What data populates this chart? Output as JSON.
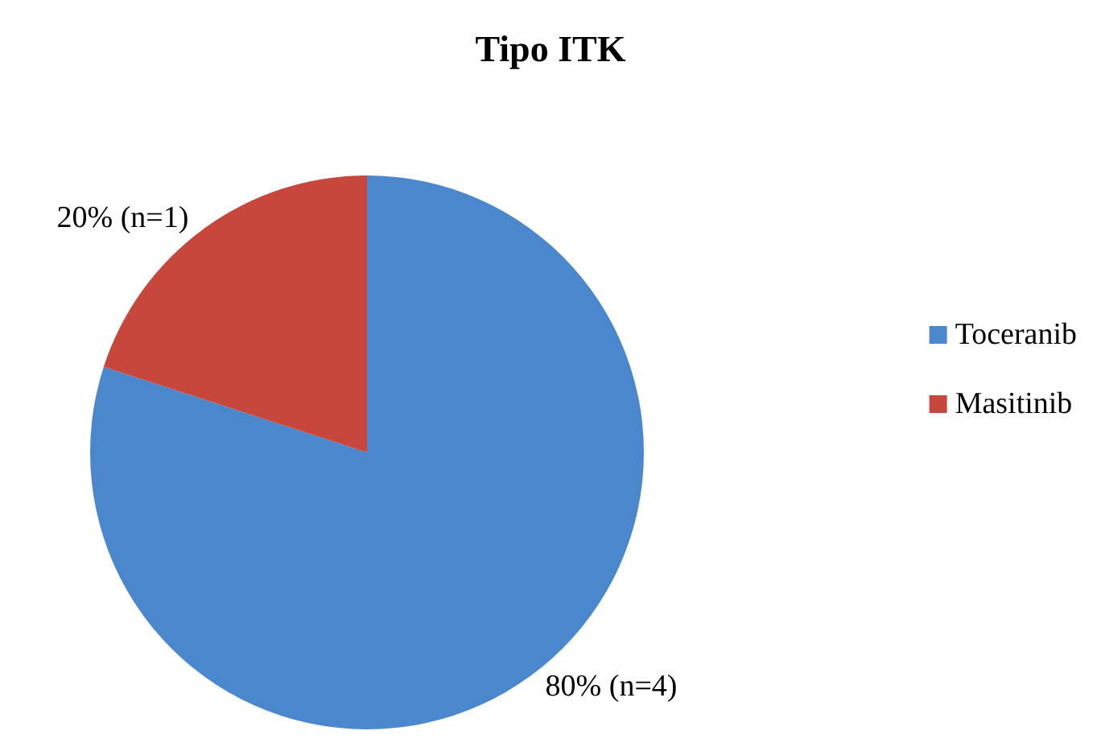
{
  "chart_data": {
    "type": "pie",
    "title": "Tipo ITK",
    "categories": [
      "Toceranib",
      "Masitinib"
    ],
    "values": [
      80,
      20
    ],
    "colors": [
      "#4a87cc",
      "#c8473d"
    ],
    "value_labels": [
      "80% (n=4)",
      "20% (n=1)"
    ],
    "legend": "right"
  }
}
